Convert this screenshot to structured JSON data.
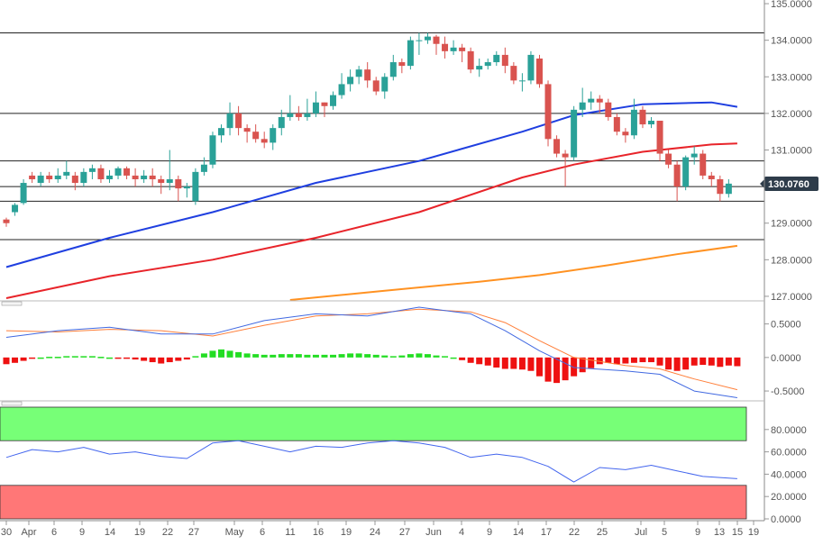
{
  "colors": {
    "up": "#2aa198",
    "down": "#d9534f",
    "ma_fast": "#1f3fe0",
    "ma_mid": "#e8242a",
    "ma_slow": "#ff9222",
    "macd": "#4169e1",
    "signal": "#ff7f3a",
    "hist_pos": "#22dd22",
    "hist_neg": "#ee1111",
    "rsi_line": "#4466ee",
    "rsi_ob": "#77ff77",
    "rsi_os": "#ff7777",
    "price_label_bg": "#2e3c4a",
    "price_label_fg": "#ffffff"
  },
  "chart_data": [
    {
      "type": "candlestick",
      "panel": "price",
      "x_ticks": [
        "30",
        "Apr",
        "6",
        "9",
        "14",
        "19",
        "22",
        "27",
        "May",
        "6",
        "11",
        "16",
        "19",
        "24",
        "27",
        "Jun",
        "4",
        "9",
        "14",
        "17",
        "22",
        "25",
        "Jul",
        "5",
        "9",
        "13",
        "15",
        "19"
      ],
      "y_ticks": [
        "127.0000",
        "128.0000",
        "129.0000",
        "130.0000",
        "131.0000",
        "132.0000",
        "133.0000",
        "134.0000",
        "135.0000"
      ],
      "ylim": [
        126.9,
        135.1
      ],
      "current_price_label": "130.0760",
      "current_price": 130.076,
      "horizontal_levels": [
        134.2,
        132.0,
        130.7,
        130.0,
        129.6,
        128.55
      ],
      "candles": [
        [
          129.1,
          129.0,
          129.15,
          128.9
        ],
        [
          129.3,
          129.5,
          129.55,
          129.2
        ],
        [
          129.55,
          130.1,
          130.2,
          129.5
        ],
        [
          130.3,
          130.2,
          130.4,
          130.1
        ],
        [
          130.1,
          130.3,
          130.4,
          130.0
        ],
        [
          130.3,
          130.2,
          130.4,
          130.1
        ],
        [
          130.2,
          130.3,
          130.5,
          130.1
        ],
        [
          130.3,
          130.4,
          130.7,
          130.2
        ],
        [
          130.3,
          130.1,
          130.4,
          129.9
        ],
        [
          130.1,
          130.4,
          130.5,
          130.0
        ],
        [
          130.4,
          130.5,
          130.6,
          130.2
        ],
        [
          130.5,
          130.2,
          130.6,
          130.1
        ],
        [
          130.2,
          130.3,
          130.45,
          130.1
        ],
        [
          130.3,
          130.5,
          130.55,
          130.2
        ],
        [
          130.5,
          130.3,
          130.55,
          130.2
        ],
        [
          130.3,
          130.2,
          130.5,
          130.0
        ],
        [
          130.2,
          130.3,
          130.45,
          130.1
        ],
        [
          130.3,
          130.2,
          130.5,
          130.0
        ],
        [
          130.2,
          130.1,
          130.3,
          129.8
        ],
        [
          130.1,
          130.2,
          131.0,
          129.9
        ],
        [
          130.2,
          129.95,
          130.3,
          129.6
        ],
        [
          129.95,
          130.0,
          130.1,
          129.7
        ],
        [
          129.6,
          130.4,
          130.5,
          129.5
        ],
        [
          130.4,
          130.6,
          130.8,
          130.3
        ],
        [
          130.6,
          131.4,
          131.5,
          130.5
        ],
        [
          131.4,
          131.6,
          131.7,
          131.2
        ],
        [
          131.6,
          132.0,
          132.3,
          131.4
        ],
        [
          132.0,
          131.6,
          132.2,
          131.4
        ],
        [
          131.6,
          131.5,
          131.7,
          131.2
        ],
        [
          131.5,
          131.3,
          131.7,
          131.2
        ],
        [
          131.3,
          131.2,
          131.5,
          131.05
        ],
        [
          131.2,
          131.6,
          131.7,
          131.0
        ],
        [
          131.6,
          131.9,
          132.1,
          131.4
        ],
        [
          131.9,
          132.0,
          132.5,
          131.8
        ],
        [
          132.0,
          131.9,
          132.2,
          131.8
        ],
        [
          131.9,
          132.0,
          132.4,
          131.8
        ],
        [
          132.0,
          132.3,
          132.6,
          131.9
        ],
        [
          132.3,
          132.2,
          132.3,
          131.9
        ],
        [
          132.2,
          132.5,
          132.6,
          132.1
        ],
        [
          132.5,
          132.8,
          133.1,
          132.4
        ],
        [
          132.8,
          133.0,
          133.2,
          132.6
        ],
        [
          133.0,
          133.2,
          133.3,
          132.8
        ],
        [
          133.2,
          132.9,
          133.4,
          132.7
        ],
        [
          132.9,
          132.6,
          133.0,
          132.5
        ],
        [
          132.6,
          133.0,
          133.1,
          132.4
        ],
        [
          133.0,
          133.4,
          133.6,
          132.9
        ],
        [
          133.4,
          133.3,
          133.5,
          133.1
        ],
        [
          133.3,
          134.0,
          134.1,
          133.2
        ],
        [
          134.0,
          134.0,
          134.2,
          133.6
        ],
        [
          134.0,
          134.1,
          134.2,
          133.9
        ],
        [
          134.1,
          133.9,
          134.15,
          133.6
        ],
        [
          133.9,
          133.7,
          134.1,
          133.5
        ],
        [
          133.7,
          133.8,
          134.0,
          133.6
        ],
        [
          133.8,
          133.7,
          133.9,
          133.4
        ],
        [
          133.7,
          133.2,
          133.8,
          133.1
        ],
        [
          133.2,
          133.3,
          133.5,
          133.0
        ],
        [
          133.3,
          133.4,
          133.5,
          133.2
        ],
        [
          133.4,
          133.6,
          133.7,
          133.3
        ],
        [
          133.6,
          133.3,
          133.8,
          133.1
        ],
        [
          133.3,
          132.9,
          133.4,
          132.8
        ],
        [
          132.9,
          132.9,
          133.1,
          132.6
        ],
        [
          132.9,
          133.6,
          133.7,
          132.8
        ],
        [
          133.5,
          132.8,
          133.6,
          132.7
        ],
        [
          132.8,
          131.3,
          132.9,
          131.1
        ],
        [
          131.3,
          130.9,
          131.4,
          130.8
        ],
        [
          130.9,
          130.8,
          131.0,
          130.0
        ],
        [
          130.8,
          132.1,
          132.2,
          130.7
        ],
        [
          132.1,
          132.3,
          132.7,
          131.9
        ],
        [
          132.3,
          132.4,
          132.6,
          132.1
        ],
        [
          132.4,
          132.3,
          132.5,
          132.0
        ],
        [
          132.3,
          131.9,
          132.4,
          131.8
        ],
        [
          131.9,
          131.5,
          132.0,
          131.4
        ],
        [
          131.5,
          131.4,
          131.6,
          131.2
        ],
        [
          131.4,
          132.1,
          132.4,
          131.3
        ],
        [
          132.1,
          131.7,
          132.2,
          131.6
        ],
        [
          131.7,
          131.8,
          131.9,
          131.6
        ],
        [
          131.8,
          130.9,
          131.8,
          130.7
        ],
        [
          130.9,
          130.6,
          131.0,
          130.5
        ],
        [
          130.6,
          130.0,
          130.7,
          129.6
        ],
        [
          130.0,
          130.8,
          130.85,
          129.9
        ],
        [
          130.8,
          130.9,
          131.1,
          130.6
        ],
        [
          130.9,
          130.3,
          131.0,
          130.2
        ],
        [
          130.3,
          130.2,
          130.4,
          130.0
        ],
        [
          130.2,
          129.8,
          130.3,
          129.6
        ],
        [
          129.8,
          130.08,
          130.2,
          129.7
        ]
      ],
      "ma_fast": [
        [
          0,
          127.8
        ],
        [
          12,
          128.6
        ],
        [
          24,
          129.3
        ],
        [
          36,
          130.1
        ],
        [
          48,
          130.7
        ],
        [
          60,
          131.5
        ],
        [
          66,
          131.95
        ],
        [
          74,
          132.25
        ],
        [
          82,
          132.3
        ],
        [
          85,
          132.18
        ]
      ],
      "ma_mid": [
        [
          0,
          126.95
        ],
        [
          12,
          127.55
        ],
        [
          24,
          128.0
        ],
        [
          36,
          128.6
        ],
        [
          48,
          129.3
        ],
        [
          60,
          130.25
        ],
        [
          66,
          130.6
        ],
        [
          74,
          130.95
        ],
        [
          82,
          131.15
        ],
        [
          85,
          131.18
        ]
      ],
      "ma_slow": [
        [
          33,
          126.9
        ],
        [
          44,
          127.15
        ],
        [
          55,
          127.4
        ],
        [
          62,
          127.58
        ],
        [
          70,
          127.85
        ],
        [
          78,
          128.15
        ],
        [
          85,
          128.38
        ]
      ]
    },
    {
      "type": "macd",
      "panel": "macd",
      "y_ticks": [
        "0.5000",
        "0.0000",
        "-0.5000"
      ],
      "ylim": [
        -0.62,
        0.75
      ],
      "macd": [
        [
          0,
          0.3
        ],
        [
          6,
          0.4
        ],
        [
          12,
          0.45
        ],
        [
          18,
          0.35
        ],
        [
          24,
          0.35
        ],
        [
          30,
          0.55
        ],
        [
          36,
          0.65
        ],
        [
          42,
          0.62
        ],
        [
          48,
          0.75
        ],
        [
          54,
          0.65
        ],
        [
          58,
          0.4
        ],
        [
          62,
          0.1
        ],
        [
          66,
          -0.15
        ],
        [
          72,
          -0.2
        ],
        [
          76,
          -0.25
        ],
        [
          80,
          -0.5
        ],
        [
          85,
          -0.6
        ]
      ],
      "signal": [
        [
          0,
          0.4
        ],
        [
          6,
          0.38
        ],
        [
          12,
          0.42
        ],
        [
          18,
          0.4
        ],
        [
          24,
          0.32
        ],
        [
          30,
          0.48
        ],
        [
          36,
          0.62
        ],
        [
          42,
          0.65
        ],
        [
          48,
          0.72
        ],
        [
          54,
          0.68
        ],
        [
          58,
          0.52
        ],
        [
          62,
          0.25
        ],
        [
          66,
          0.0
        ],
        [
          72,
          -0.12
        ],
        [
          76,
          -0.17
        ],
        [
          80,
          -0.32
        ],
        [
          85,
          -0.48
        ]
      ],
      "histogram": [
        -0.1,
        -0.08,
        -0.05,
        -0.02,
        0.0,
        0.01,
        0.01,
        0.02,
        0.02,
        0.02,
        0.02,
        0.01,
        0.0,
        -0.01,
        -0.02,
        -0.03,
        -0.05,
        -0.07,
        -0.09,
        -0.07,
        -0.05,
        -0.03,
        0.02,
        0.06,
        0.1,
        0.12,
        0.1,
        0.08,
        0.06,
        0.05,
        0.04,
        0.04,
        0.05,
        0.05,
        0.05,
        0.04,
        0.04,
        0.04,
        0.04,
        0.05,
        0.06,
        0.06,
        0.05,
        0.04,
        0.03,
        0.02,
        0.03,
        0.05,
        0.06,
        0.05,
        0.03,
        0.02,
        0.0,
        -0.04,
        -0.08,
        -0.1,
        -0.12,
        -0.15,
        -0.17,
        -0.17,
        -0.18,
        -0.2,
        -0.28,
        -0.36,
        -0.38,
        -0.34,
        -0.28,
        -0.22,
        -0.16,
        -0.1,
        -0.08,
        -0.1,
        -0.09,
        -0.08,
        -0.07,
        -0.07,
        -0.12,
        -0.18,
        -0.2,
        -0.18,
        -0.12,
        -0.11,
        -0.12,
        -0.14,
        -0.12,
        -0.13
      ]
    },
    {
      "type": "rsi",
      "panel": "rsi",
      "y_ticks": [
        "80.0000",
        "60.0000",
        "40.0000",
        "20.0000",
        "0.0000"
      ],
      "ylim": [
        0,
        100
      ],
      "overbought": 70,
      "oversold": 30,
      "values": [
        [
          0,
          55
        ],
        [
          3,
          62
        ],
        [
          6,
          60
        ],
        [
          9,
          64
        ],
        [
          12,
          58
        ],
        [
          15,
          60
        ],
        [
          18,
          56
        ],
        [
          21,
          54
        ],
        [
          24,
          68
        ],
        [
          27,
          70
        ],
        [
          30,
          65
        ],
        [
          33,
          60
        ],
        [
          36,
          65
        ],
        [
          39,
          64
        ],
        [
          42,
          68
        ],
        [
          45,
          70
        ],
        [
          48,
          68
        ],
        [
          51,
          64
        ],
        [
          54,
          55
        ],
        [
          57,
          58
        ],
        [
          60,
          55
        ],
        [
          63,
          47
        ],
        [
          66,
          33
        ],
        [
          69,
          46
        ],
        [
          72,
          44
        ],
        [
          75,
          48
        ],
        [
          78,
          43
        ],
        [
          81,
          38
        ],
        [
          85,
          36
        ]
      ]
    }
  ]
}
